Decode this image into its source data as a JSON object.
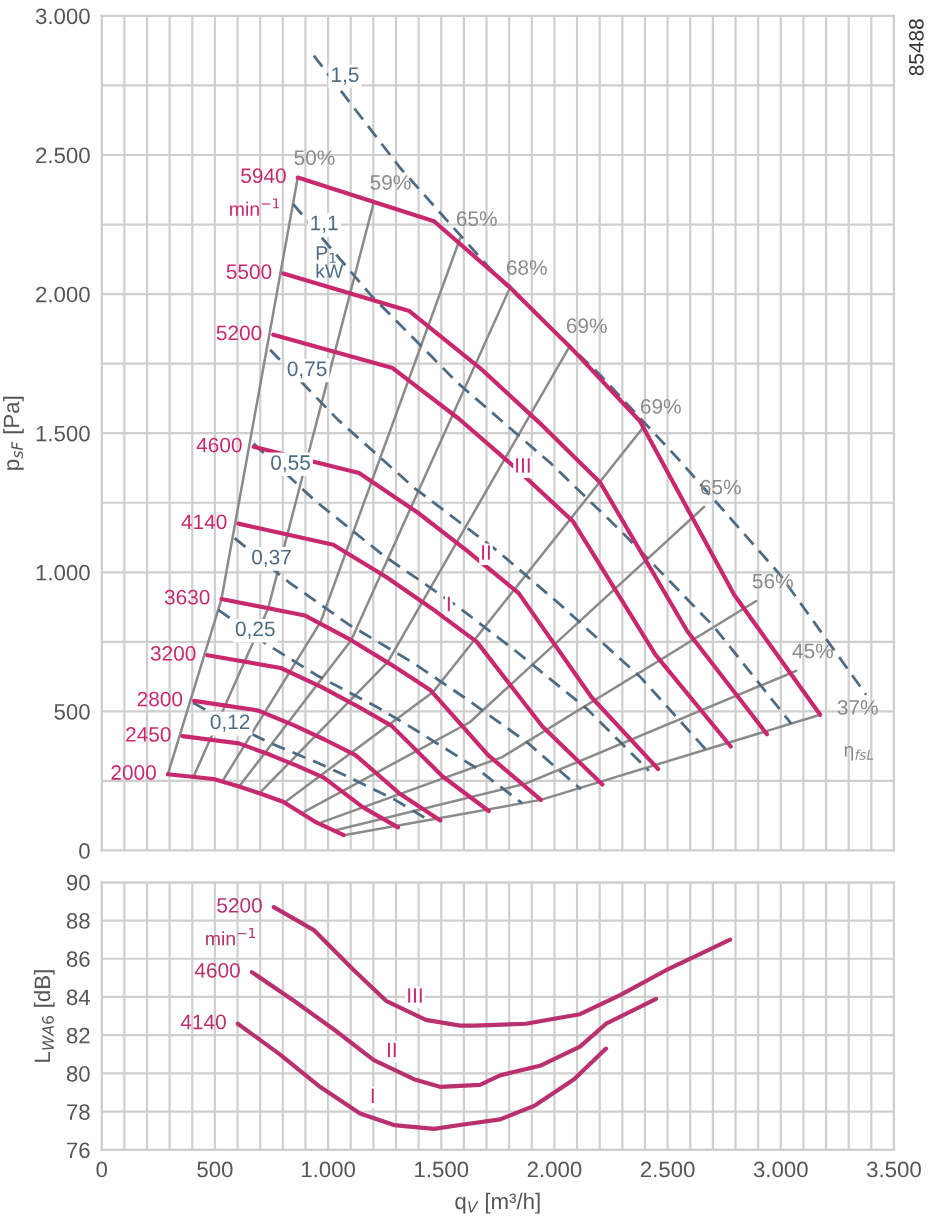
{
  "chart_data": [
    {
      "type": "line",
      "ylabel": "p$_{sF}$ [Pa]",
      "xlim": [
        0,
        3500
      ],
      "ylim": [
        0,
        3000
      ],
      "grid": true,
      "tick_labels": "y",
      "xticks": [
        {
          "value": 0,
          "label": null
        },
        {
          "value": 100,
          "label": null
        },
        {
          "value": 200,
          "label": null
        },
        {
          "value": 300,
          "label": null
        },
        {
          "value": 400,
          "label": null
        },
        {
          "value": 500,
          "label": null
        },
        {
          "value": 600,
          "label": null
        },
        {
          "value": 700,
          "label": null
        },
        {
          "value": 800,
          "label": null
        },
        {
          "value": 900,
          "label": null
        },
        {
          "value": 1000,
          "label": null
        },
        {
          "value": 1100,
          "label": null
        },
        {
          "value": 1200,
          "label": null
        },
        {
          "value": 1300,
          "label": null
        },
        {
          "value": 1400,
          "label": null
        },
        {
          "value": 1500,
          "label": null
        },
        {
          "value": 1600,
          "label": null
        },
        {
          "value": 1700,
          "label": null
        },
        {
          "value": 1800,
          "label": null
        },
        {
          "value": 1900,
          "label": null
        },
        {
          "value": 2000,
          "label": null
        },
        {
          "value": 2100,
          "label": null
        },
        {
          "value": 2200,
          "label": null
        },
        {
          "value": 2300,
          "label": null
        },
        {
          "value": 2400,
          "label": null
        },
        {
          "value": 2500,
          "label": null
        },
        {
          "value": 2600,
          "label": null
        },
        {
          "value": 2700,
          "label": null
        },
        {
          "value": 2800,
          "label": null
        },
        {
          "value": 2900,
          "label": null
        },
        {
          "value": 3000,
          "label": null
        },
        {
          "value": 3100,
          "label": null
        },
        {
          "value": 3200,
          "label": null
        },
        {
          "value": 3300,
          "label": null
        },
        {
          "value": 3400,
          "label": null
        },
        {
          "value": 3500,
          "label": null
        }
      ],
      "yticks": [
        0,
        {
          "value": 250,
          "label": null
        },
        500,
        {
          "value": 750,
          "label": null
        },
        {
          "value": 1000,
          "label": "1.000"
        },
        {
          "value": 1250,
          "label": null
        },
        {
          "value": 1500,
          "label": "1.500"
        },
        {
          "value": 1750,
          "label": null
        },
        {
          "value": 2000,
          "label": "2.000"
        },
        {
          "value": 2250,
          "label": null
        },
        {
          "value": 2500,
          "label": "2.500"
        },
        {
          "value": 2750,
          "label": null
        },
        {
          "value": 3000,
          "label": "3.000"
        }
      ],
      "series": [
        {
          "name": "50%",
          "color": "#8a8a8a",
          "line_style": "solid",
          "x": [
            292,
            529,
            866
          ],
          "values": [
            274,
            904,
            2419
          ]
        },
        {
          "name": "59%",
          "color": "#8a8a8a",
          "line_style": "solid",
          "x": [
            405,
            735,
            1202
          ],
          "values": [
            264,
            870,
            2330
          ]
        },
        {
          "name": "65%",
          "color": "#8a8a8a",
          "line_style": "solid",
          "x": [
            533,
            967,
            1583
          ],
          "values": [
            249,
            822,
            2200
          ]
        },
        {
          "name": "68%",
          "color": "#8a8a8a",
          "line_style": "solid",
          "x": [
            607,
            1102,
            1804
          ],
          "values": [
            230,
            756,
            2024
          ]
        },
        {
          "name": "69%",
          "color": "#8a8a8a",
          "line_style": "solid",
          "x": [
            697,
            1264,
            2069
          ],
          "values": [
            206,
            678,
            1815
          ]
        },
        {
          "name": "69%",
          "color": "#8a8a8a",
          "line_style": "solid",
          "x": [
            807,
            1464,
            2396
          ],
          "values": [
            173,
            570,
            1525
          ]
        },
        {
          "name": "65%",
          "color": "#8a8a8a",
          "line_style": "solid",
          "x": [
            896,
            1626,
            2661
          ],
          "values": [
            140,
            461,
            1235
          ]
        },
        {
          "name": "56%",
          "color": "#8a8a8a",
          "line_style": "solid",
          "x": [
            973,
            1767,
            2891
          ],
          "values": [
            102,
            335,
            897
          ]
        },
        {
          "name": "45%",
          "color": "#8a8a8a",
          "line_style": "solid",
          "x": [
            1033,
            1875,
            3068
          ],
          "values": [
            73,
            241,
            646
          ]
        },
        {
          "name": "37%",
          "color": "#8a8a8a",
          "line_style": "solid",
          "x": [
            1069,
            1940,
            3174
          ],
          "values": [
            55,
            182,
            488
          ]
        },
        {
          "name": "1,5",
          "color": "#4d6b82",
          "line_style": "dashed",
          "x": [
            937,
            1317,
            1742,
            2202,
            2555,
            2997,
            3377
          ],
          "values": [
            2857,
            2455,
            2067,
            1709,
            1400,
            991,
            560
          ]
        },
        {
          "name": "1,1",
          "color": "#4d6b82",
          "line_style": "dashed",
          "x": [
            845,
            1188,
            1571,
            1986,
            2305,
            2703,
            3046
          ],
          "values": [
            2324,
            1997,
            1682,
            1390,
            1139,
            806,
            456
          ]
        },
        {
          "name": "0,75",
          "color": "#4d6b82",
          "line_style": "dashed",
          "x": [
            744,
            1045,
            1383,
            1748,
            2028,
            2379,
            2680
          ],
          "values": [
            1800,
            1547,
            1302,
            1077,
            882,
            624,
            353
          ]
        },
        {
          "name": "0,55",
          "color": "#4d6b82",
          "line_style": "dashed",
          "x": [
            671,
            943,
            1247,
            1576,
            1829,
            2145,
            2417
          ],
          "values": [
            1463,
            1257,
            1059,
            875,
            717,
            508,
            287
          ]
        },
        {
          "name": "0,37",
          "color": "#4d6b82",
          "line_style": "dashed",
          "x": [
            587,
            826,
            1092,
            1381,
            1602,
            1879,
            2117
          ],
          "values": [
            1123,
            965,
            812,
            672,
            550,
            389,
            220
          ]
        },
        {
          "name": "0,25",
          "color": "#4d6b82",
          "line_style": "dashed",
          "x": [
            515,
            724,
            958,
            1211,
            1405,
            1648,
            1857
          ],
          "values": [
            865,
            744,
            626,
            518,
            424,
            300,
            170
          ]
        },
        {
          "name": "0,12",
          "color": "#4d6b82",
          "line_style": "dashed",
          "x": [
            404,
            568,
            751,
            949,
            1101,
            1292,
            1455
          ],
          "values": [
            531,
            456,
            384,
            317,
            260,
            184,
            104
          ]
        },
        {
          "name": "5940",
          "color": "#c8286e",
          "line_style": "solid",
          "x": [
            866,
            1468,
            1804,
            2087,
            2378,
            2794,
            3174
          ],
          "values": [
            2419,
            2262,
            2024,
            1795,
            1543,
            919,
            488
          ]
        },
        {
          "name": "5500",
          "color": "#c8286e",
          "line_style": "solid",
          "x": [
            802,
            1359,
            1670,
            1932,
            2202,
            2587,
            2939
          ],
          "values": [
            2074,
            1939,
            1735,
            1539,
            1323,
            788,
            418
          ]
        },
        {
          "name": "5200",
          "color": "#c8286e",
          "line_style": "solid",
          "x": [
            758,
            1285,
            1579,
            1827,
            2082,
            2446,
            2779
          ],
          "values": [
            1854,
            1734,
            1551,
            1376,
            1183,
            704,
            374
          ]
        },
        {
          "name": "4600",
          "color": "#c8286e",
          "line_style": "solid",
          "x": [
            671,
            1137,
            1397,
            1616,
            1842,
            2164,
            2458
          ],
          "values": [
            1451,
            1357,
            1214,
            1076,
            925,
            551,
            293
          ]
        },
        {
          "name": "4140",
          "color": "#c8286e",
          "line_style": "solid",
          "x": [
            604,
            1023,
            1257,
            1455,
            1657,
            1947,
            2212
          ],
          "values": [
            1175,
            1099,
            983,
            872,
            750,
            446,
            237
          ]
        },
        {
          "name": "3630",
          "color": "#c8286e",
          "line_style": "solid",
          "x": [
            529,
            897,
            1102,
            1275,
            1453,
            1707,
            1940
          ],
          "values": [
            904,
            845,
            756,
            670,
            576,
            343,
            182
          ]
        },
        {
          "name": "3200",
          "color": "#c8286e",
          "line_style": "solid",
          "x": [
            467,
            791,
            972,
            1124,
            1281,
            1505,
            1710
          ],
          "values": [
            702,
            656,
            587,
            521,
            448,
            267,
            142
          ]
        },
        {
          "name": "2800",
          "color": "#c8286e",
          "line_style": "solid",
          "x": [
            408,
            692,
            850,
            984,
            1121,
            1317,
            1496
          ],
          "values": [
            538,
            503,
            450,
            399,
            343,
            204,
            108
          ]
        },
        {
          "name": "2450",
          "color": "#c8286e",
          "line_style": "solid",
          "x": [
            357,
            606,
            744,
            861,
            981,
            1153,
            1309
          ],
          "values": [
            411,
            385,
            344,
            305,
            262,
            156,
            83
          ]
        },
        {
          "name": "2000",
          "color": "#c8286e",
          "line_style": "solid",
          "x": [
            292,
            494,
            607,
            703,
            801,
            941,
            1069
          ],
          "values": [
            274,
            257,
            230,
            204,
            175,
            104,
            55
          ]
        }
      ],
      "annotations": [
        "min$^{−1}$",
        "P$_{1}$\nkW",
        "η$_{fsL}$",
        "85488",
        {
          "text": "III",
          "x": 1936,
          "y": 1293
        },
        {
          "text": "II",
          "x": 1760,
          "y": 980
        },
        {
          "text": "I",
          "x": 1583,
          "y": 795
        }
      ]
    },
    {
      "type": "line",
      "xlabel": "q$_{V}$ [m³/h]",
      "ylabel": "L$_{WA6}$ [dB]",
      "xlim": [
        0,
        3500
      ],
      "ylim": [
        76,
        90
      ],
      "grid": true,
      "xticks": [
        0,
        {
          "value": 100,
          "label": null
        },
        {
          "value": 200,
          "label": null
        },
        {
          "value": 300,
          "label": null
        },
        {
          "value": 400,
          "label": null
        },
        500,
        {
          "value": 600,
          "label": null
        },
        {
          "value": 700,
          "label": null
        },
        {
          "value": 800,
          "label": null
        },
        {
          "value": 900,
          "label": null
        },
        {
          "value": 1000,
          "label": "1.000"
        },
        {
          "value": 1100,
          "label": null
        },
        {
          "value": 1200,
          "label": null
        },
        {
          "value": 1300,
          "label": null
        },
        {
          "value": 1400,
          "label": null
        },
        {
          "value": 1500,
          "label": "1.500"
        },
        {
          "value": 1600,
          "label": null
        },
        {
          "value": 1700,
          "label": null
        },
        {
          "value": 1800,
          "label": null
        },
        {
          "value": 1900,
          "label": null
        },
        {
          "value": 2000,
          "label": "2.000"
        },
        {
          "value": 2100,
          "label": null
        },
        {
          "value": 2200,
          "label": null
        },
        {
          "value": 2300,
          "label": null
        },
        {
          "value": 2400,
          "label": null
        },
        {
          "value": 2500,
          "label": "2.500"
        },
        {
          "value": 2600,
          "label": null
        },
        {
          "value": 2700,
          "label": null
        },
        {
          "value": 2800,
          "label": null
        },
        {
          "value": 2900,
          "label": null
        },
        {
          "value": 3000,
          "label": "3.000"
        },
        {
          "value": 3100,
          "label": null
        },
        {
          "value": 3200,
          "label": null
        },
        {
          "value": 3300,
          "label": null
        },
        {
          "value": 3400,
          "label": null
        },
        {
          "value": 3500,
          "label": "3.500"
        }
      ],
      "yticks": [
        76,
        78,
        80,
        82,
        84,
        86,
        88,
        90
      ],
      "series": [
        {
          "name": "5200",
          "color": "#b8306e",
          "line_style": "solid",
          "x": [
            760,
            937,
            1114,
            1256,
            1432,
            1583,
            1645,
            1874,
            2113,
            2290,
            2493,
            2617,
            2776
          ],
          "values": [
            88.7,
            87.5,
            85.4,
            83.8,
            82.8,
            82.5,
            82.5,
            82.6,
            83.1,
            84.1,
            85.4,
            86.1,
            87.0
          ]
        },
        {
          "name": "4600",
          "color": "#b8306e",
          "line_style": "solid",
          "x": [
            663,
            849,
            1026,
            1202,
            1379,
            1494,
            1671,
            1760,
            1936,
            2113,
            2228,
            2449
          ],
          "values": [
            85.3,
            83.8,
            82.3,
            80.7,
            79.7,
            79.3,
            79.4,
            79.9,
            80.4,
            81.4,
            82.6,
            83.9
          ]
        },
        {
          "name": "4140",
          "color": "#b8306e",
          "line_style": "solid",
          "x": [
            601,
            787,
            964,
            1141,
            1291,
            1468,
            1583,
            1760,
            1910,
            2087,
            2228
          ],
          "values": [
            82.6,
            81.0,
            79.3,
            77.9,
            77.3,
            77.1,
            77.3,
            77.6,
            78.3,
            79.7,
            81.3
          ]
        }
      ],
      "annotations": [
        "min$^{−1}$",
        {
          "text": "III",
          "x": 1459,
          "y": 82.75
        },
        {
          "text": "II",
          "x": 1344,
          "y": 79.9
        },
        {
          "text": "I",
          "x": 1247,
          "y": 77.5
        }
      ]
    }
  ]
}
